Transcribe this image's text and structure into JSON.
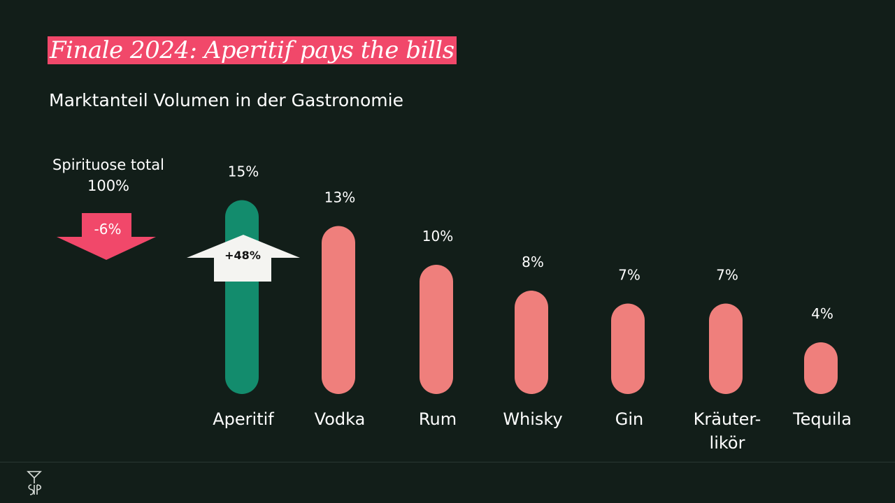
{
  "title": "Finale 2024: Aperitif pays the bills",
  "subtitle": "Marktanteil Volumen in der Gastronomie",
  "total": {
    "label": "Spirituose total",
    "value_label": "100%",
    "change_label": "-6%",
    "color": "#f1486a"
  },
  "highlight_change": {
    "label": "+48%",
    "color": "#f4f4f1"
  },
  "chart_data": {
    "type": "bar",
    "categories": [
      "Aperitif",
      "Vodka",
      "Rum",
      "Whisky",
      "Gin",
      "Kräuter-\nlikör",
      "Tequila"
    ],
    "values": [
      15,
      13,
      10,
      8,
      7,
      7,
      4
    ],
    "value_labels": [
      "15%",
      "13%",
      "10%",
      "8%",
      "7%",
      "7%",
      "4%"
    ],
    "unit": "%",
    "highlight_color": "#138c6d",
    "bar_color": "#ef7f7c",
    "ylim": [
      0,
      15
    ],
    "grid": false,
    "legend": "none"
  },
  "logo": {
    "icon": "sip-logo-icon"
  }
}
